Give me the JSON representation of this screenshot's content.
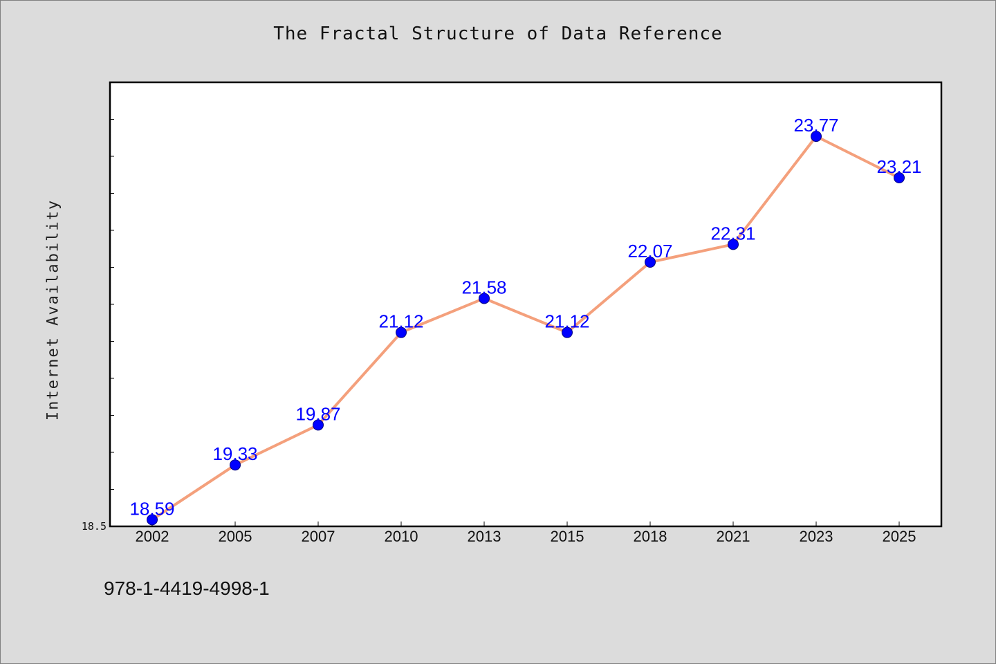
{
  "page": {
    "background": "#dcdcdc",
    "footer_text": "978-1-4419-4998-1"
  },
  "chart_data": {
    "type": "line",
    "title": "The Fractal Structure of Data Reference",
    "xlabel": "",
    "ylabel": "Internet Availability",
    "categories": [
      "2002",
      "2005",
      "2007",
      "2010",
      "2013",
      "2015",
      "2018",
      "2021",
      "2023",
      "2025"
    ],
    "series": [
      {
        "values": [
          18.59,
          19.33,
          19.87,
          21.12,
          21.58,
          21.12,
          22.07,
          22.31,
          23.77,
          23.21
        ],
        "labels": [
          "18.59",
          "19.33",
          "19.87",
          "21.12",
          "21.58",
          "21.12",
          "22.07",
          "22.31",
          "23.77",
          "23.21"
        ],
        "line_color": "#f4a07c",
        "marker_color": "#0000ff",
        "label_color": "#0000ff"
      }
    ],
    "y_tick_labels": [
      "18.5"
    ],
    "ylim": [
      18.5,
      24.5
    ],
    "y_minor_step": 0.5,
    "grid": false,
    "legend": "none",
    "plot_background": "#ffffff"
  }
}
